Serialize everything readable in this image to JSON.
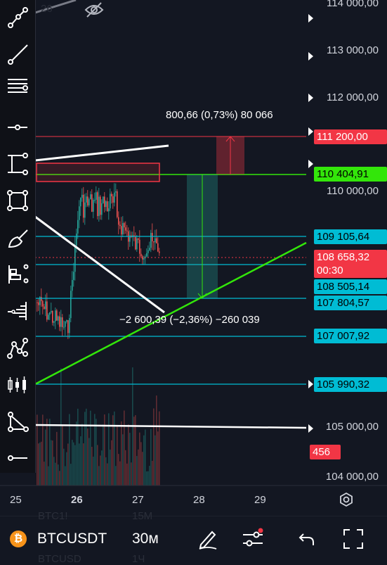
{
  "price_axis": {
    "ticks": [
      "114 000,00",
      "113 000,00",
      "112 000,00",
      "110 000,00",
      "105 000,00",
      "104 000,00"
    ],
    "labels": [
      {
        "id": "label-111200",
        "text": "111 200,00",
        "bg": "#f23645",
        "fg": "#ffffff"
      },
      {
        "id": "label-110404",
        "text": "110 404,91",
        "bg": "#33e60a",
        "fg": "#000000"
      },
      {
        "id": "label-109105",
        "text": "109 105,64",
        "bg": "#00bcd4",
        "fg": "#000000"
      },
      {
        "id": "label-108658",
        "text": "108 658,32",
        "bg": "#f23645",
        "fg": "#ffffff"
      },
      {
        "id": "label-countdown",
        "text": "00:30",
        "bg": "#f23645",
        "fg": "#ffffff"
      },
      {
        "id": "label-108505",
        "text": "108 505,14",
        "bg": "#00bcd4",
        "fg": "#000000"
      },
      {
        "id": "label-107804",
        "text": "107 804,57",
        "bg": "#00bcd4",
        "fg": "#000000"
      },
      {
        "id": "label-107007",
        "text": "107 007,92",
        "bg": "#00bcd4",
        "fg": "#000000"
      },
      {
        "id": "label-105990",
        "text": "105 990,32",
        "bg": "#00bcd4",
        "fg": "#000000"
      },
      {
        "id": "label-volume",
        "text": "456",
        "bg": "#f23645",
        "fg": "#ffffff"
      }
    ]
  },
  "time_axis": {
    "dates": [
      "25",
      "26",
      "27",
      "28",
      "29"
    ],
    "bold_date": "26"
  },
  "measurements": {
    "long": "800,66 (0,73%) 80 066",
    "short": "−2 600,39 (−2,36%) −260 039"
  },
  "ghost_text": {
    "top": "26",
    "row1": "BTC1!",
    "row1_tf": "15M",
    "row2": "BTCUSD",
    "row2_tf": "1Ч"
  },
  "bottom_bar": {
    "symbol": "BTCUSDT",
    "timeframe": "30м",
    "symbol_icon_glyph": "₿"
  },
  "colors": {
    "background": "#131722",
    "up": "#26a69a",
    "down": "#ef5350",
    "cyan": "#00bcd4",
    "green_line": "#33e60a",
    "red": "#f23645"
  },
  "toolbar_icons": [
    "trend-line-icon",
    "ray-icon",
    "parallel-channel-icon",
    "horizontal-ray-icon",
    "price-range-icon",
    "rectangle-icon",
    "brush-icon",
    "fib-retracement-icon",
    "volume-profile-icon",
    "pattern-icon",
    "candles-icon",
    "triangle-icon",
    "horizontal-line-icon"
  ]
}
